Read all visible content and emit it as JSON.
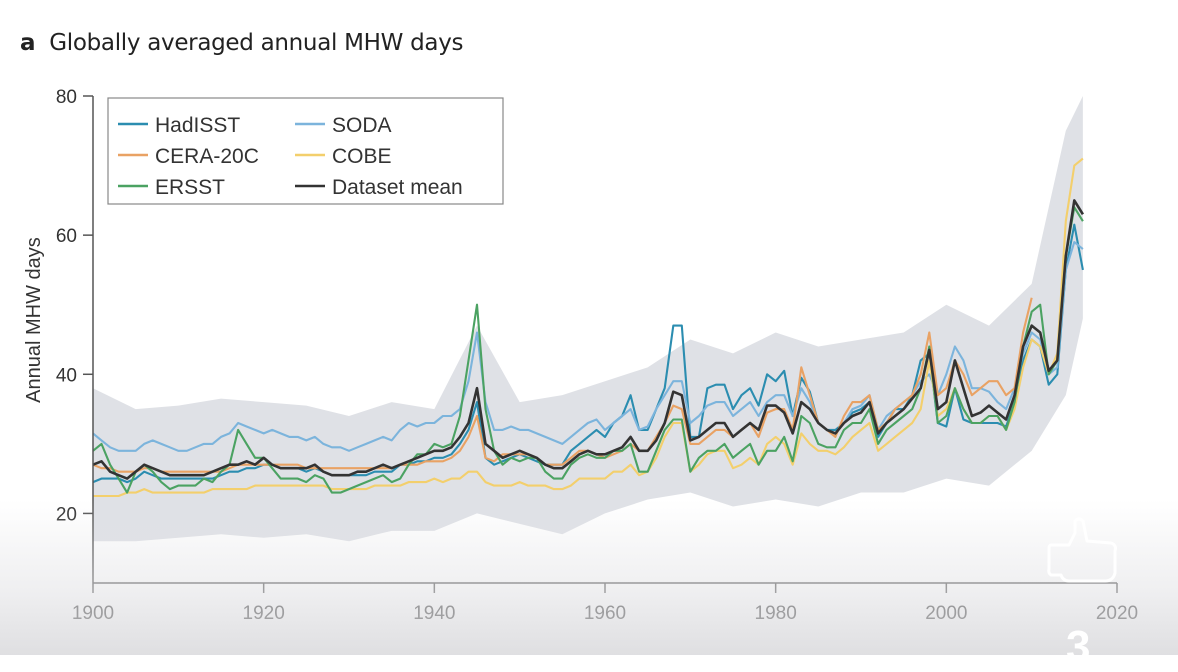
{
  "panel_label": "a",
  "overlay": {
    "like_icon": "thumbs-up-icon",
    "like_count": "3"
  },
  "chart_data": {
    "type": "line",
    "title": "Globally averaged annual MHW days",
    "xlabel": "",
    "ylabel": "Annual MHW days",
    "xlim": [
      1900,
      2020
    ],
    "ylim": [
      10,
      80
    ],
    "xticks": [
      "1900",
      "1920",
      "1940",
      "1960",
      "1980",
      "2000",
      "2020"
    ],
    "yticks": [
      "20",
      "40",
      "60",
      "80"
    ],
    "grid": false,
    "legend_placement": "top-left",
    "x_start": 1900,
    "series": [
      {
        "name": "HadISST",
        "color": "#2b8db0",
        "values": [
          24.5,
          25,
          25,
          25,
          24.5,
          25,
          26,
          25.5,
          25,
          25,
          25,
          25,
          25,
          25,
          25,
          25.5,
          26,
          26,
          26.5,
          26.5,
          27,
          27,
          26.5,
          26.5,
          26.5,
          26,
          26.5,
          26,
          25.5,
          25.5,
          25.5,
          25.5,
          25.5,
          26,
          26,
          26,
          27,
          27,
          27.5,
          27.5,
          28,
          28,
          28.5,
          30,
          32,
          36,
          28,
          27,
          27.5,
          28,
          28.5,
          28,
          27.5,
          27,
          27,
          27,
          29,
          30,
          31,
          32,
          31,
          33,
          34,
          37,
          32,
          32,
          35,
          38,
          47,
          47,
          31,
          31,
          38,
          38.5,
          38.5,
          35,
          37,
          38,
          35.5,
          40,
          39,
          40.5,
          34,
          39.5,
          37.5,
          33,
          32,
          32,
          33,
          34.5,
          35,
          36,
          31,
          33,
          35,
          35,
          37,
          42,
          43,
          33,
          32.5,
          38,
          33.5,
          33,
          33,
          33,
          33,
          32.5,
          36,
          42,
          45,
          44,
          38.5,
          40,
          55,
          61.5,
          55
        ]
      },
      {
        "name": "SODA",
        "color": "#7cb4dc",
        "values": [
          31.5,
          30.5,
          29.5,
          29,
          29,
          29,
          30,
          30.5,
          30,
          29.5,
          29,
          29,
          29.5,
          30,
          30,
          31,
          31.5,
          33,
          32.5,
          32,
          31.5,
          32,
          31.5,
          31,
          31,
          30.5,
          31,
          30,
          29.5,
          29.5,
          29,
          29.5,
          30,
          30.5,
          31,
          30.5,
          32,
          33,
          32.5,
          33,
          33,
          34,
          34,
          35,
          39,
          46,
          36,
          32,
          32,
          32.5,
          32,
          32,
          31.5,
          31,
          30.5,
          30,
          31,
          32,
          33,
          33.5,
          32,
          33,
          34,
          35,
          32,
          32.5,
          35,
          37,
          39,
          39,
          33,
          34,
          35.5,
          36,
          36,
          34,
          35,
          36,
          34,
          36,
          37,
          37,
          34,
          38,
          36,
          33,
          32,
          31.5,
          33,
          35,
          35.5,
          37,
          32,
          34,
          35,
          36,
          37,
          39,
          40,
          37,
          40,
          44,
          42,
          38,
          38,
          37.5,
          36,
          35,
          38,
          43,
          46,
          45,
          40,
          41,
          55,
          59,
          58
        ]
      },
      {
        "name": "CERA-20C",
        "color": "#e9a264",
        "values": [
          27,
          26.5,
          26.5,
          26,
          26,
          26,
          26.5,
          26.5,
          26,
          26,
          26,
          26,
          26,
          26,
          26,
          26,
          26.5,
          27,
          27,
          27,
          27,
          27,
          27,
          27,
          27,
          26.5,
          26.5,
          26.5,
          26.5,
          26.5,
          26.5,
          26.5,
          26.5,
          26.5,
          26.5,
          26.5,
          27,
          27,
          27,
          27.5,
          27.5,
          27.5,
          28,
          29,
          31,
          34,
          28,
          27.5,
          28.5,
          28.5,
          28.5,
          28.5,
          28,
          27,
          27,
          27,
          28,
          29,
          29,
          28.5,
          28,
          28.5,
          29,
          30,
          29,
          29,
          31,
          33,
          35.5,
          35,
          30,
          30,
          31,
          32,
          32,
          31,
          32,
          33,
          31,
          34.5,
          35,
          35,
          32,
          41,
          37,
          33,
          32,
          31,
          34,
          36,
          36,
          37,
          32,
          33,
          35,
          36,
          37,
          40,
          46,
          37,
          38,
          42,
          40,
          37,
          38,
          39,
          39,
          37,
          38,
          46,
          51,
          null,
          null,
          null,
          null,
          null,
          null
        ]
      },
      {
        "name": "COBE",
        "color": "#f3cf6c",
        "values": [
          22.5,
          22.5,
          22.5,
          22.5,
          23,
          23,
          23.5,
          23,
          23,
          23,
          23,
          23,
          23,
          23,
          23.5,
          23.5,
          23.5,
          23.5,
          23.5,
          24,
          24,
          24,
          24,
          24,
          24,
          24,
          24,
          24,
          23.5,
          23.5,
          23.5,
          23.5,
          23.5,
          24,
          24,
          24,
          24,
          24.5,
          24.5,
          24.5,
          25,
          24.5,
          25,
          25,
          26,
          26,
          24.5,
          24,
          24,
          24,
          24.5,
          24,
          24,
          24,
          23.5,
          23.5,
          24,
          25,
          25,
          25,
          25,
          26,
          26,
          27,
          25.5,
          26,
          28,
          31,
          33,
          33,
          26,
          27,
          28.5,
          29,
          29,
          26.5,
          27,
          28,
          27,
          30,
          31,
          30,
          27,
          31.5,
          30,
          29,
          29,
          28.5,
          29.5,
          31,
          32,
          33,
          29,
          30,
          31,
          32,
          33,
          35,
          42,
          34,
          35,
          38,
          35,
          33,
          33,
          34,
          34,
          32,
          35,
          41,
          45,
          44,
          40,
          43,
          62,
          70,
          71
        ]
      },
      {
        "name": "ERSST",
        "color": "#4ba262",
        "values": [
          29,
          30,
          27,
          25,
          23,
          26,
          27,
          26,
          24.5,
          23.5,
          24,
          24,
          24,
          25,
          24.5,
          26,
          27,
          32,
          30,
          28,
          28,
          26.5,
          25,
          25,
          25,
          24.5,
          25.5,
          25,
          23,
          23,
          23.5,
          24,
          24.5,
          25,
          25.5,
          24.5,
          25,
          27,
          28.5,
          28.5,
          30,
          29.5,
          30,
          34,
          42,
          50,
          35,
          29,
          27,
          28,
          27.5,
          28,
          28,
          26,
          25,
          25,
          27,
          28,
          28.5,
          28,
          28,
          29,
          29,
          30,
          26,
          26,
          29,
          32,
          33.5,
          33.5,
          26,
          28,
          29,
          29,
          30,
          28,
          29,
          30,
          27,
          29,
          29,
          31,
          27.5,
          34,
          33,
          30,
          29.5,
          29.5,
          32,
          33,
          33,
          35,
          30,
          32,
          33,
          34,
          35,
          38,
          44,
          33,
          34,
          38,
          35,
          33,
          33,
          34,
          34,
          32,
          36,
          44,
          49,
          50,
          40,
          42,
          57,
          64,
          62
        ]
      },
      {
        "name": "Dataset mean",
        "color": "#333333",
        "values": [
          27,
          27.5,
          26,
          25.5,
          25,
          26,
          27,
          26.5,
          26,
          25.5,
          25.5,
          25.5,
          25.5,
          25.5,
          26,
          26.5,
          27,
          27,
          27.5,
          27,
          28,
          27,
          26.5,
          26.5,
          26.5,
          26.5,
          27,
          26,
          25.5,
          25.5,
          25.5,
          26,
          26,
          26.5,
          27,
          26.5,
          27,
          27.5,
          28,
          28.5,
          29,
          29,
          29.5,
          31,
          33,
          38,
          30,
          29,
          28,
          28.5,
          29,
          28.5,
          28,
          27,
          26.5,
          26.5,
          27.5,
          28.5,
          29,
          28.5,
          28.5,
          29,
          29.5,
          31,
          29,
          29,
          30.5,
          33,
          37.5,
          37,
          30.5,
          31,
          32,
          33,
          33,
          31,
          32,
          33,
          32,
          35.5,
          35.5,
          34.5,
          31.5,
          36,
          35,
          33,
          32,
          31.5,
          33,
          34,
          34.5,
          36,
          31.5,
          33,
          34,
          35,
          36.5,
          38,
          43.5,
          35,
          36,
          42,
          38,
          34,
          34.5,
          35.5,
          34.5,
          33.5,
          37,
          44,
          47,
          46,
          40.5,
          42,
          57,
          65,
          63
        ]
      }
    ],
    "uncertainty_band": {
      "color": "#dfe1e6",
      "years": [
        1900,
        1905,
        1910,
        1915,
        1920,
        1925,
        1930,
        1935,
        1940,
        1945,
        1950,
        1955,
        1960,
        1965,
        1970,
        1975,
        1980,
        1985,
        1990,
        1995,
        2000,
        2005,
        2010,
        2014,
        2016
      ],
      "upper": [
        38,
        35,
        35.5,
        36.5,
        36,
        35.5,
        34,
        36,
        35,
        47,
        36,
        37,
        39,
        41,
        45,
        43,
        46,
        44,
        45,
        46,
        50,
        47,
        53,
        75,
        80
      ],
      "lower": [
        16,
        16,
        16.5,
        17,
        16.5,
        17,
        16,
        17.5,
        17.5,
        20,
        18.5,
        17,
        20,
        22,
        23,
        21,
        22,
        21,
        23,
        23,
        25,
        24,
        29,
        37,
        48
      ]
    }
  }
}
